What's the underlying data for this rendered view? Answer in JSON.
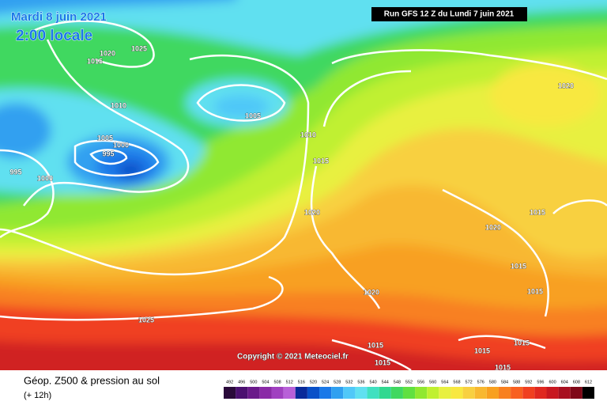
{
  "header": {
    "date": "Mardi 8 juin 2021",
    "time": "2:00 locale",
    "run": "Run GFS 12 Z du Lundi 7 juin 2021"
  },
  "map": {
    "isobar_labels": [
      "1025",
      "1020",
      "1015",
      "1010",
      "1005",
      "1000",
      "995",
      "995",
      "1000",
      "1005",
      "1010",
      "1015",
      "1020",
      "1020",
      "1015",
      "1020",
      "1015",
      "1015",
      "1020",
      "1025",
      "1015",
      "1015",
      "1015",
      "1015",
      "1015"
    ],
    "copyright": "Copyright © 2021 Meteociel.fr"
  },
  "footer": {
    "title": "Géop. Z500 & pression au sol",
    "lead": "(+ 12h)",
    "scale": {
      "labels": [
        492,
        496,
        500,
        504,
        508,
        512,
        516,
        520,
        524,
        528,
        532,
        536,
        540,
        544,
        548,
        552,
        556,
        560,
        564,
        568,
        572,
        576,
        580,
        584,
        588,
        592,
        596,
        600,
        604,
        608,
        612
      ],
      "colors": [
        "#2a0a3a",
        "#4b1070",
        "#6a1a8a",
        "#8a2aa6",
        "#a040c0",
        "#b860d8",
        "#0a2a9a",
        "#0a50c8",
        "#1a78e8",
        "#30a0f0",
        "#50c8f8",
        "#60e0f0",
        "#40e0c0",
        "#30d890",
        "#40d860",
        "#60e040",
        "#90e830",
        "#c0f030",
        "#e8f040",
        "#f8e840",
        "#f8d040",
        "#f8b830",
        "#f8a020",
        "#f88020",
        "#f86020",
        "#f04020",
        "#e02820",
        "#c81820",
        "#a81020",
        "#800818",
        "#000000"
      ]
    }
  }
}
